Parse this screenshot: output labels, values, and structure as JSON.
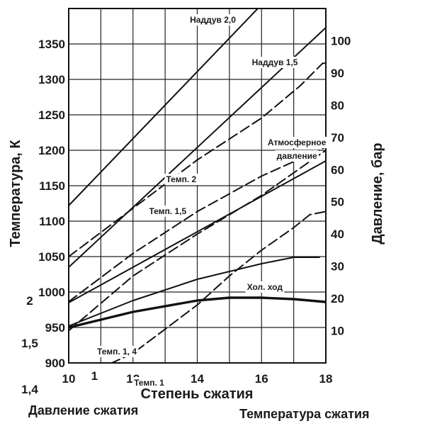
{
  "chart_data": {
    "type": "line",
    "xlabel": "Степень сжатия",
    "ylabel_left": "Температура, К",
    "ylabel_right": "Давление, бар",
    "xlim": [
      10,
      18
    ],
    "ylim_left": [
      900,
      1400
    ],
    "ylim_right": [
      0,
      110
    ],
    "x_ticks": [
      "10",
      "12",
      "14",
      "16",
      "18"
    ],
    "y_left_ticks": [
      "900",
      "950",
      "1000",
      "1050",
      "1100",
      "1150",
      "1200",
      "1250",
      "1300",
      "1350"
    ],
    "y_right_ticks": [
      "10",
      "20",
      "30",
      "40",
      "50",
      "60",
      "70",
      "80",
      "90",
      "100"
    ],
    "extra_left_labels": [
      {
        "text": "2",
        "y": 988
      },
      {
        "text": "1,5",
        "y": 928
      },
      {
        "text": "1,4",
        "y": 863
      }
    ],
    "extra_x_label": {
      "text": "1",
      "x": 10.8
    },
    "legend_bottom_left": "Давление сжатия",
    "legend_bottom_right": "Температура сжатия",
    "series": [
      {
        "name": "Наддув 2,0",
        "style": "solid",
        "axis": "left",
        "points": [
          [
            10,
            1122
          ],
          [
            18,
            1500
          ]
        ]
      },
      {
        "name": "Наддув 1,5",
        "style": "solid",
        "axis": "left",
        "points": [
          [
            10,
            1035
          ],
          [
            18,
            1373
          ]
        ]
      },
      {
        "name": "Атмосферное давление",
        "style": "solid",
        "axis": "left",
        "points": [
          [
            10,
            985
          ],
          [
            18,
            1185
          ]
        ]
      },
      {
        "name": "",
        "style": "solid",
        "axis": "left",
        "points": [
          [
            10,
            952
          ],
          [
            12,
            988
          ],
          [
            14,
            1018
          ],
          [
            16,
            1040
          ],
          [
            17,
            1049
          ],
          [
            17.8,
            1049
          ]
        ]
      },
      {
        "name": "Хол. ход",
        "style": "solid-thick",
        "axis": "left",
        "points": [
          [
            10,
            950
          ],
          [
            12,
            972
          ],
          [
            14,
            988
          ],
          [
            15,
            992
          ],
          [
            16,
            992
          ],
          [
            17,
            990
          ],
          [
            18,
            986
          ]
        ]
      },
      {
        "name": "Темп. 2",
        "style": "dashed",
        "axis": "right",
        "points": [
          [
            10,
            33
          ],
          [
            12,
            48
          ],
          [
            14,
            63
          ],
          [
            16,
            76
          ],
          [
            17.2,
            86
          ],
          [
            17.9,
            93
          ],
          [
            18,
            93
          ]
        ]
      },
      {
        "name": "Темп. 1,5",
        "style": "dashed",
        "axis": "right",
        "points": [
          [
            10,
            19
          ],
          [
            12,
            34
          ],
          [
            14,
            47
          ],
          [
            16,
            58
          ],
          [
            18,
            67
          ]
        ]
      },
      {
        "name": "Темп. 1, 4",
        "style": "dashed",
        "axis": "right",
        "points": [
          [
            10,
            10
          ],
          [
            12,
            27
          ],
          [
            14,
            40
          ],
          [
            16,
            52
          ],
          [
            18,
            66
          ]
        ]
      },
      {
        "name": "Темп. 1",
        "style": "dashed",
        "axis": "right",
        "points": [
          [
            10.9,
            -2
          ],
          [
            12,
            3
          ],
          [
            14,
            18
          ],
          [
            15,
            27
          ],
          [
            16,
            35
          ],
          [
            17,
            42
          ],
          [
            17.5,
            46
          ],
          [
            18,
            47
          ]
        ]
      }
    ],
    "labels": [
      {
        "text": "Наддув 2,0",
        "x": 15.2,
        "y_left": 1380,
        "anchor": "end"
      },
      {
        "text": "Наддув 1,5",
        "x": 15.7,
        "y_left": 1320,
        "anchor": "start"
      },
      {
        "text": "Атмосферное",
        "x": 17.1,
        "y_left": 1207,
        "anchor": "middle"
      },
      {
        "text": "давление",
        "x": 17.1,
        "y_left": 1188,
        "anchor": "middle"
      },
      {
        "text": "Темп. 2",
        "x": 13.5,
        "y_left": 1155,
        "anchor": "middle"
      },
      {
        "text": "Темп. 1,5",
        "x": 12.5,
        "y_left": 1110,
        "anchor": "start"
      },
      {
        "text": "Хол. ход",
        "x": 16.1,
        "y_left": 1003,
        "anchor": "middle"
      },
      {
        "text": "Темп. 1, 4",
        "x": 11.5,
        "y_left": 912,
        "anchor": "middle"
      },
      {
        "text": "Темп. 1",
        "x": 12.5,
        "y_left": 868,
        "anchor": "middle"
      }
    ]
  }
}
